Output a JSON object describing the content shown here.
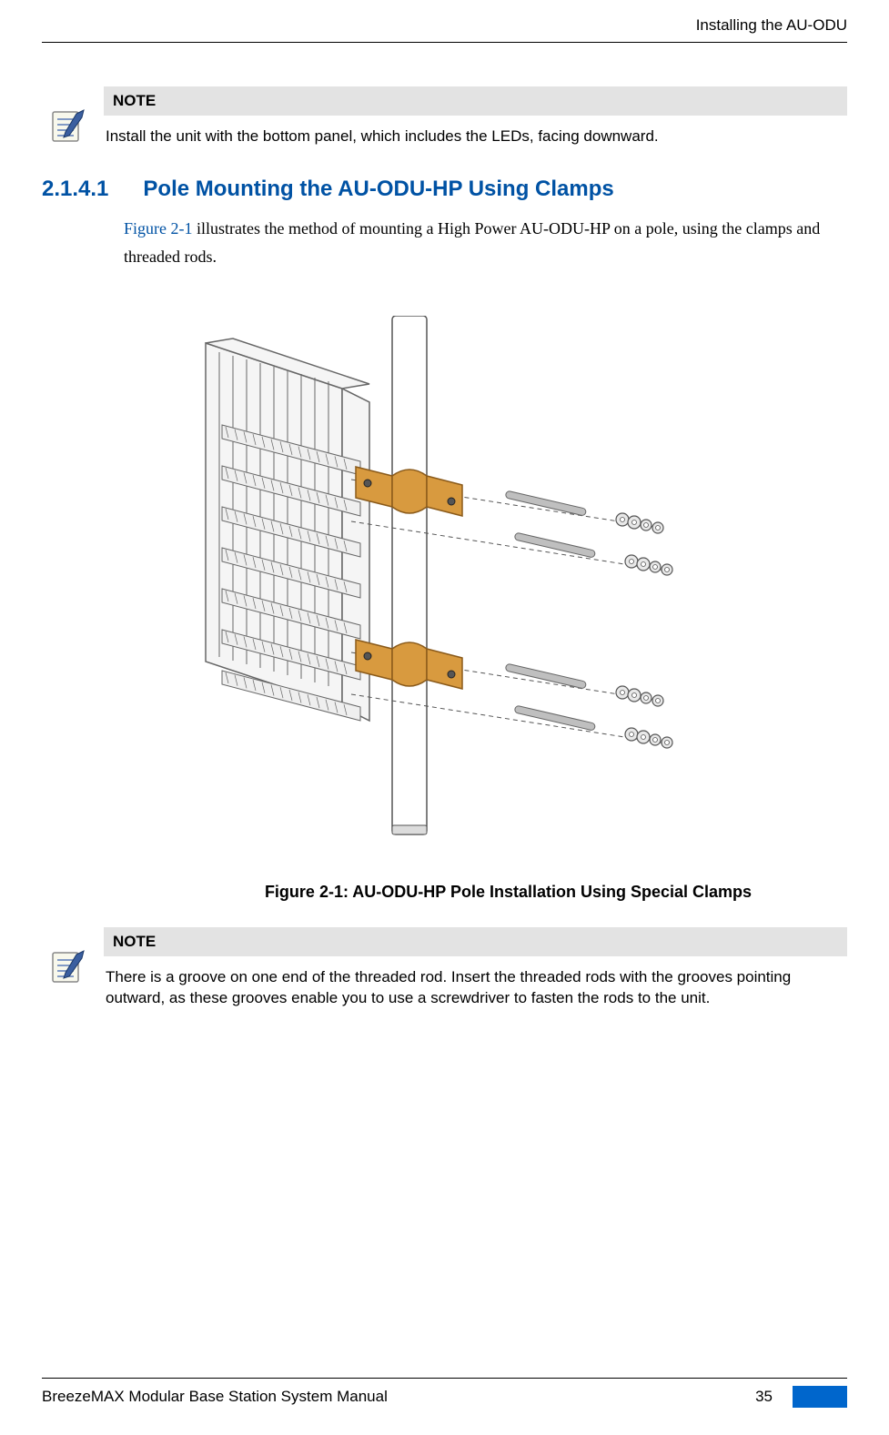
{
  "header": {
    "chapter": "Installing the AU-ODU"
  },
  "note1": {
    "label": "NOTE",
    "text": "Install the unit with the bottom panel, which includes the LEDs, facing downward."
  },
  "section": {
    "number": "2.1.4.1",
    "title": "Pole Mounting the AU-ODU-HP Using Clamps",
    "body_prefix": "Figure 2-1",
    "body_rest": " illustrates the method of mounting a High Power AU-ODU-HP on a pole, using the clamps and threaded rods."
  },
  "figure": {
    "caption": "Figure 2-1: AU-ODU-HP Pole Installation Using Special Clamps",
    "colors": {
      "unit_fill": "#f5f5f5",
      "unit_stroke": "#666666",
      "pole_fill": "#ffffff",
      "pole_stroke": "#555555",
      "clamp_fill": "#d89a3f",
      "clamp_stroke": "#8a5a1a",
      "rod_fill": "#bfbfbf",
      "rod_stroke": "#666666",
      "nut_fill": "#e8e8e8",
      "nut_stroke": "#555555",
      "dash_stroke": "#555555"
    }
  },
  "note2": {
    "label": "NOTE",
    "text": "There is a groove on one end of the threaded rod. Insert the threaded rods with the grooves pointing outward, as these grooves enable you to use a screwdriver to fasten the rods to the unit."
  },
  "footer": {
    "manual": "BreezeMAX Modular Base Station System Manual",
    "page": "35"
  }
}
